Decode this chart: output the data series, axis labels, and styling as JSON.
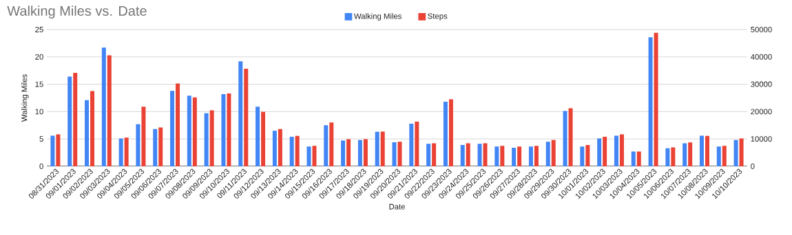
{
  "chart_data": {
    "type": "bar",
    "title": "Walking Miles vs. Date",
    "xlabel": "Date",
    "ylabel": "Walking Miles",
    "categories": [
      "08/31/2023",
      "09/01/2023",
      "09/02/2023",
      "09/03/2023",
      "09/04/2023",
      "09/05/2023",
      "09/06/2023",
      "09/07/2023",
      "09/08/2023",
      "09/09/2023",
      "09/10/2023",
      "09/11/2023",
      "09/12/2023",
      "09/13/2023",
      "09/14/2023",
      "09/15/2023",
      "09/16/2023",
      "09/17/2023",
      "09/18/2023",
      "09/19/2023",
      "09/20/2023",
      "09/21/2023",
      "09/22/2023",
      "09/23/2023",
      "09/24/2023",
      "09/25/2023",
      "09/26/2023",
      "09/27/2023",
      "09/28/2023",
      "09/29/2023",
      "09/30/2023",
      "10/01/2023",
      "10/02/2023",
      "10/03/2023",
      "10/04/2023",
      "10/05/2023",
      "10/06/2023",
      "10/07/2023",
      "10/08/2023",
      "10/09/2023",
      "10/10/2023"
    ],
    "series": [
      {
        "name": "Walking Miles",
        "color": "#4285f4",
        "values": [
          5.6,
          16.4,
          12.1,
          21.7,
          5.1,
          7.7,
          6.8,
          13.8,
          12.9,
          9.7,
          13.2,
          19.2,
          10.9,
          6.5,
          5.4,
          3.6,
          7.5,
          4.7,
          4.8,
          6.3,
          4.4,
          7.8,
          4.1,
          11.8,
          3.9,
          4.1,
          3.6,
          3.4,
          3.6,
          4.5,
          10.1,
          3.6,
          5.1,
          5.6,
          2.7,
          23.6,
          3.3,
          4.2,
          5.6,
          3.6,
          4.8
        ]
      },
      {
        "name": "Steps",
        "color": "#ea4335",
        "axis": "y2",
        "values": [
          11700,
          34200,
          27500,
          40600,
          10500,
          21800,
          14200,
          30300,
          25200,
          20500,
          26600,
          35700,
          19900,
          13600,
          11100,
          7500,
          16000,
          9900,
          9900,
          12700,
          9000,
          16300,
          8400,
          24500,
          8400,
          8400,
          7500,
          7200,
          7500,
          9600,
          21200,
          7800,
          10800,
          11700,
          5400,
          48800,
          6900,
          8700,
          11100,
          7500,
          10200
        ]
      }
    ],
    "ylim": [
      0,
      25
    ],
    "yticks": [
      0,
      5,
      10,
      15,
      20,
      25
    ],
    "y2lim": [
      0,
      50000
    ],
    "y2ticks": [
      0,
      10000,
      20000,
      30000,
      40000,
      50000
    ],
    "grid": "y",
    "legend": "top"
  }
}
